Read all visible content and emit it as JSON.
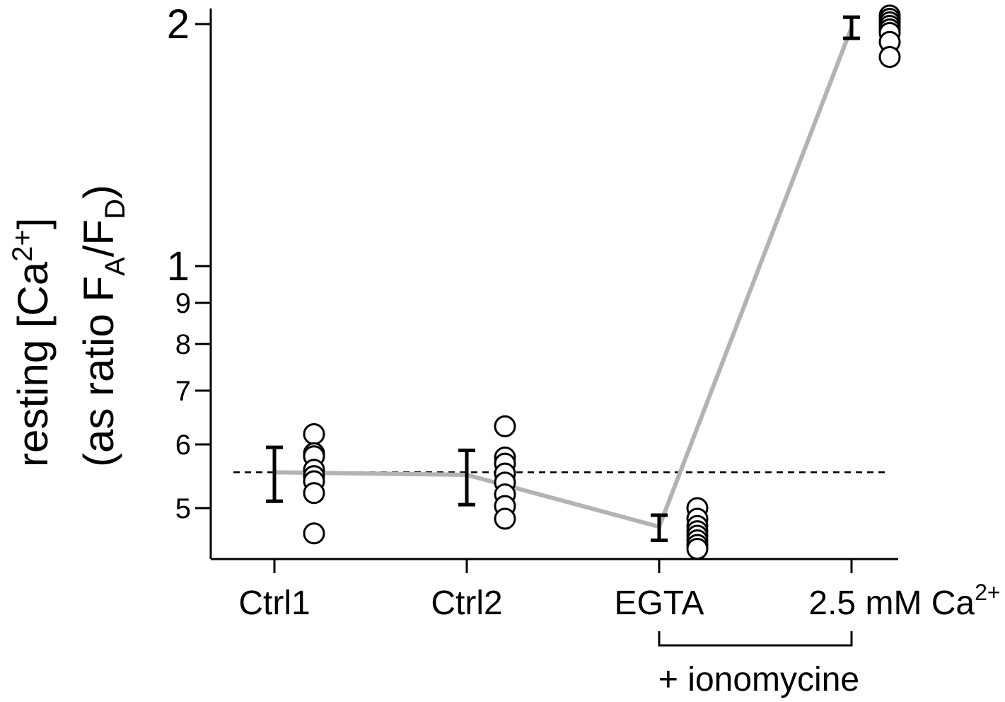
{
  "chart_data": {
    "type": "scatter",
    "title": "",
    "ylabel_line1": "resting [Ca",
    "ylabel_line1_sup": "2+",
    "ylabel_line1_end": "]",
    "ylabel_line2_prefix": "(as ratio F",
    "ylabel_line2_sub1": "A",
    "ylabel_line2_mid": "/F",
    "ylabel_line2_sub2": "D",
    "ylabel_line2_end": ")",
    "y_scale": "log",
    "ylim": [
      0.43,
      2.08
    ],
    "y_ticks_major": [
      {
        "value": 1,
        "label": "1"
      },
      {
        "value": 2,
        "label": "2"
      }
    ],
    "y_ticks_minor": [
      {
        "value": 0.5,
        "label": "5"
      },
      {
        "value": 0.6,
        "label": "6"
      },
      {
        "value": 0.7,
        "label": "7"
      },
      {
        "value": 0.8,
        "label": "8"
      },
      {
        "value": 0.9,
        "label": "9"
      }
    ],
    "categories": [
      {
        "label": "Ctrl1",
        "sup": ""
      },
      {
        "label": "Ctrl2",
        "sup": ""
      },
      {
        "label": "EGTA",
        "sup": ""
      },
      {
        "label": "2.5 mM Ca",
        "sup": "2+"
      }
    ],
    "mean": [
      0.554,
      0.55,
      0.474,
      1.98
    ],
    "error_low": [
      0.51,
      0.505,
      0.456,
      1.92
    ],
    "error_high": [
      0.595,
      0.59,
      0.49,
      2.04
    ],
    "points": [
      [
        0.618,
        0.585,
        0.58,
        0.558,
        0.548,
        0.54,
        0.522,
        0.465
      ],
      [
        0.632,
        0.578,
        0.568,
        0.552,
        0.538,
        0.52,
        0.503,
        0.485
      ],
      [
        0.5,
        0.485,
        0.475,
        0.468,
        0.462,
        0.456,
        0.45,
        0.445
      ],
      [
        2.05,
        2.03,
        2.01,
        1.99,
        1.97,
        1.95,
        1.9,
        1.82
      ]
    ],
    "reference_line": 0.554,
    "annotation": "+ ionomycine",
    "bracket_categories": [
      2,
      3
    ],
    "colors": {
      "mean_line": "#b3b3b3",
      "reference_line": "#000000",
      "points": "#000000"
    }
  }
}
